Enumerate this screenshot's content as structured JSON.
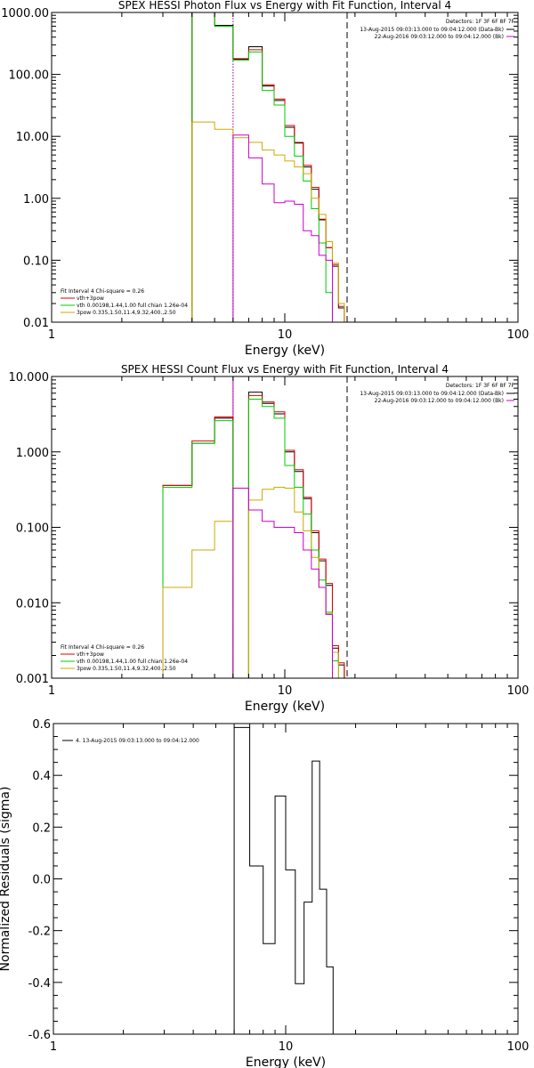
{
  "chart_data": [
    {
      "type": "line",
      "title": "SPEX HESSI Photon Flux vs Energy with Fit Function, Interval 4",
      "xlabel": "Energy (keV)",
      "ylabel": "",
      "xscale": "log",
      "yscale": "log",
      "xlim": [
        1,
        100
      ],
      "ylim": [
        0.01,
        1000
      ],
      "xticks": [
        {
          "v": 1,
          "label": "1"
        },
        {
          "v": 10,
          "label": "10"
        },
        {
          "v": 100,
          "label": "100"
        }
      ],
      "yticks": [
        {
          "v": 0.01,
          "label": "0.01"
        },
        {
          "v": 0.1,
          "label": "0.10"
        },
        {
          "v": 1,
          "label": "1.00"
        },
        {
          "v": 10,
          "label": "10.00"
        },
        {
          "v": 100,
          "label": "100.00"
        },
        {
          "v": 1000,
          "label": "1000.00"
        }
      ],
      "vlines": [
        {
          "x": 6.0,
          "style": "dotted",
          "color": "#000000"
        },
        {
          "x": 6.0,
          "style": "dotted",
          "color": "#cc00cc"
        },
        {
          "x": 18.5,
          "style": "dashed",
          "color": "#000000"
        }
      ],
      "edges": [
        3,
        4,
        5,
        6,
        7,
        8,
        9,
        10,
        11,
        12,
        13,
        14,
        15,
        16,
        17,
        18,
        19,
        20,
        21
      ],
      "series": [
        {
          "name": "",
          "color": "#000000",
          "start": 3,
          "values": [
            0.003,
            1100,
            620,
            175,
            280,
            65,
            38,
            14,
            7.8,
            3.2,
            1.4,
            0.45,
            0.16,
            0.08,
            0.017,
            0.008,
            null,
            null
          ]
        },
        {
          "name": "vth+3pow",
          "color": "#dd0000",
          "start": 3,
          "values": [
            0.003,
            1100,
            600,
            180,
            250,
            68,
            40,
            15,
            8.0,
            3.4,
            1.5,
            0.46,
            0.16,
            0.085,
            0.018,
            0.009,
            null,
            null
          ]
        },
        {
          "name": "vth 0.00198,1.44,1.00  full chian 1.26e-04",
          "color": "#00cc00",
          "start": 3,
          "values": [
            0.003,
            1100,
            600,
            170,
            230,
            55,
            32,
            10,
            4.8,
            1.9,
            0.68,
            0.19,
            0.03,
            0.009,
            0.002,
            null,
            null,
            null
          ]
        },
        {
          "name": "3pow 0.335,1.50,11.4,9.32,400.,2.50",
          "color": "#ccaa00",
          "start": 3,
          "values": [
            0.003,
            17,
            13,
            9.5,
            8,
            6.0,
            5.0,
            4.0,
            3.2,
            2.5,
            1.0,
            0.55,
            0.2,
            0.09,
            0.02,
            0.008,
            null,
            null
          ]
        },
        {
          "name": "",
          "color": "#cc00cc",
          "start": 6,
          "values": [
            10.5,
            4.5,
            1.7,
            0.85,
            0.9,
            0.8,
            0.3,
            0.25,
            0.12,
            0.1,
            null,
            null,
            null,
            null,
            null
          ]
        }
      ],
      "legend": {
        "header": "Fit Interval  4    Chi-square = 0.26",
        "items": [
          {
            "label": "vth+3pow",
            "color": "#dd0000"
          },
          {
            "label": "vth 0.00198,1.44,1.00  full chian 1.26e-04",
            "color": "#00cc00"
          },
          {
            "label": "3pow 0.335,1.50,11.4,9.32,400.,2.50",
            "color": "#ccaa00"
          }
        ]
      },
      "info": {
        "detectors": "Detectors: 1F 3F 6F 8F 7F",
        "lines": [
          {
            "text": "13-Aug-2015 09:03:13.000 to 09:04:12.000 (Data-Bk)",
            "color": "#000000"
          },
          {
            "text": "22-Aug-2016 09:03:12.000 to 09:04:12.000 (Bk)",
            "color": "#cc00cc"
          }
        ]
      }
    },
    {
      "type": "line",
      "title": "SPEX HESSI Count Flux vs Energy with Fit Function, Interval 4",
      "xlabel": "Energy (keV)",
      "ylabel": "",
      "xscale": "log",
      "yscale": "log",
      "xlim": [
        1,
        100
      ],
      "ylim": [
        0.001,
        10
      ],
      "xticks": [
        {
          "v": 1,
          "label": "1"
        },
        {
          "v": 10,
          "label": "10"
        },
        {
          "v": 100,
          "label": "100"
        }
      ],
      "yticks": [
        {
          "v": 0.001,
          "label": "0.001"
        },
        {
          "v": 0.01,
          "label": "0.010"
        },
        {
          "v": 0.1,
          "label": "0.100"
        },
        {
          "v": 1,
          "label": "1.000"
        },
        {
          "v": 10,
          "label": "10.000"
        }
      ],
      "vlines": [
        {
          "x": 6.0,
          "style": "dotted",
          "color": "#000000"
        },
        {
          "x": 6.0,
          "style": "solid",
          "color": "#cc00cc"
        },
        {
          "x": 18.5,
          "style": "dashed",
          "color": "#000000"
        }
      ],
      "edges": [
        3,
        4,
        5,
        6,
        7,
        8,
        9,
        10,
        11,
        12,
        13,
        14,
        15,
        16,
        17,
        18,
        19,
        20,
        21
      ],
      "series": [
        {
          "name": "",
          "color": "#000000",
          "start": 3,
          "values": [
            0.36,
            1.3,
            2.8,
            0.0005,
            6.2,
            4.4,
            3.2,
            1.0,
            0.55,
            0.24,
            0.085,
            0.036,
            0.017,
            0.0025,
            0.0015,
            null,
            null,
            null
          ]
        },
        {
          "name": "vth+3pow",
          "color": "#dd0000",
          "start": 3,
          "values": [
            0.36,
            1.4,
            2.9,
            0.0005,
            5.6,
            4.6,
            3.4,
            1.05,
            0.58,
            0.25,
            0.09,
            0.038,
            0.018,
            0.0027,
            0.0016,
            null,
            null,
            null
          ]
        },
        {
          "name": "vth 0.00198,1.44,1.00  full chian 1.26e-04",
          "color": "#00cc00",
          "start": 3,
          "values": [
            0.34,
            1.3,
            2.6,
            0.0005,
            5.0,
            4.0,
            2.8,
            0.66,
            0.34,
            0.15,
            0.05,
            0.02,
            0.0075,
            0.0017,
            0.0009,
            null,
            null,
            null
          ]
        },
        {
          "name": "3pow 0.335,1.50,11.4,9.32,400.,2.50",
          "color": "#ccaa00",
          "start": 3,
          "values": [
            0.016,
            0.05,
            0.12,
            0.0005,
            0.23,
            0.32,
            0.34,
            0.33,
            0.16,
            0.09,
            0.04,
            0.016,
            0.0072,
            0.0022,
            0.0009,
            null,
            null,
            null
          ]
        },
        {
          "name": "",
          "color": "#cc00cc",
          "start": 6,
          "values": [
            0.33,
            0.17,
            0.12,
            0.1,
            0.1,
            0.085,
            0.05,
            0.028,
            0.016,
            0.007,
            null,
            null,
            null,
            null,
            null
          ]
        }
      ],
      "legend": {
        "header": "Fit Interval  4    Chi-square = 0.26",
        "items": [
          {
            "label": "vth+3pow",
            "color": "#dd0000"
          },
          {
            "label": "vth 0.00198,1.44,1.00  full chian 1.26e-04",
            "color": "#00cc00"
          },
          {
            "label": "3pow 0.335,1.50,11.4,9.32,400.,2.50",
            "color": "#ccaa00"
          }
        ]
      },
      "info": {
        "detectors": "Detectors: 1F 3F 6F 8F 7F",
        "lines": [
          {
            "text": "13-Aug-2015 09:03:13.000 to 09:04:12.000 (Data-Bk)",
            "color": "#000000"
          },
          {
            "text": "22-Aug-2016 09:03:12.000 to 09:04:12.000 (Bk)",
            "color": "#cc00cc"
          }
        ]
      }
    },
    {
      "type": "line",
      "title": "",
      "xlabel": "Energy (keV)",
      "ylabel": "Normalized Residuals (sigma)",
      "xscale": "log",
      "yscale": "linear",
      "xlim": [
        1,
        100
      ],
      "ylim": [
        -0.6,
        0.6
      ],
      "xticks": [
        {
          "v": 1,
          "label": "1"
        },
        {
          "v": 10,
          "label": "10"
        },
        {
          "v": 100,
          "label": "100"
        }
      ],
      "yticks": [
        {
          "v": -0.6,
          "label": "-0.6"
        },
        {
          "v": -0.4,
          "label": "-0.4"
        },
        {
          "v": -0.2,
          "label": "-0.2"
        },
        {
          "v": 0.0,
          "label": "0.0"
        },
        {
          "v": 0.2,
          "label": "0.2"
        },
        {
          "v": 0.4,
          "label": "0.4"
        },
        {
          "v": 0.6,
          "label": "0.6"
        }
      ],
      "vlines": [],
      "edges": [
        6,
        7,
        8,
        9,
        10,
        11,
        12,
        13,
        14,
        15,
        16,
        17,
        18.5
      ],
      "series": [
        {
          "name": "4. 13-Aug-2015 09:03:13.000 to 09:04:12.000",
          "color": "#000000",
          "start": 6,
          "close_to_bottom": true,
          "values": [
            0.585,
            0.05,
            -0.25,
            0.32,
            0.035,
            -0.405,
            -0.09,
            0.455,
            -0.04,
            -0.34,
            null,
            null
          ]
        }
      ],
      "legend": {
        "header": "",
        "items": [
          {
            "label": "4. 13-Aug-2015 09:03:13.000 to 09:04:12.000",
            "color": "#000000"
          }
        ]
      },
      "info": null
    }
  ]
}
